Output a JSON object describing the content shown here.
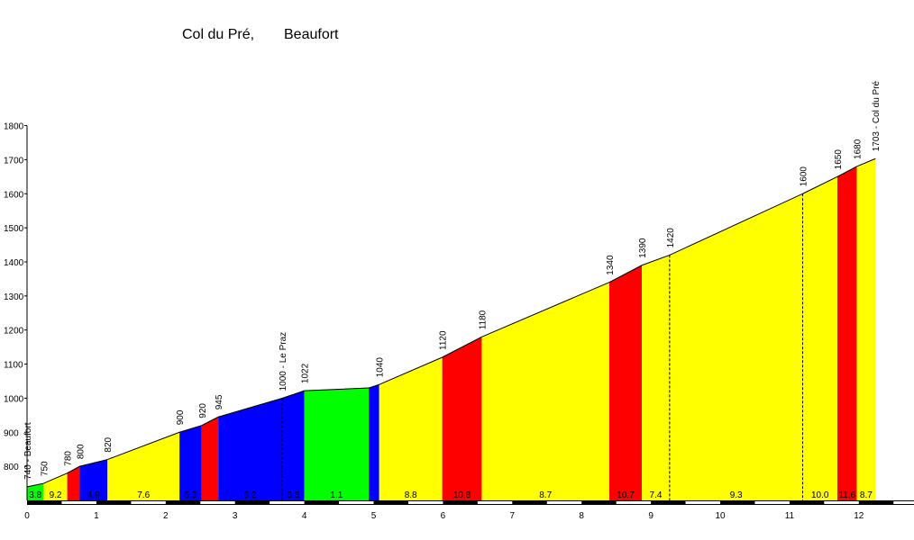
{
  "title": {
    "climb": "Col du Pré,",
    "start": "Beaufort"
  },
  "chart_data": {
    "type": "area",
    "title": "Col du Pré, Beaufort",
    "xlabel": "",
    "ylabel": "",
    "xlim": [
      0,
      12.5
    ],
    "ylim": [
      700,
      1800
    ],
    "x_ticks": [
      0,
      1,
      2,
      3,
      4,
      5,
      6,
      7,
      8,
      9,
      10,
      11,
      12
    ],
    "y_ticks": [
      800,
      900,
      1000,
      1100,
      1200,
      1300,
      1400,
      1500,
      1600,
      1700,
      1800
    ],
    "gradient_colors": {
      "green": "#00ff00",
      "yellow": "#ffff00",
      "red": "#ff0000",
      "blue": "#0000ff"
    },
    "points": [
      {
        "x": 0.0,
        "y": 740,
        "label": "740 - Beaufort"
      },
      {
        "x": 0.24,
        "y": 750,
        "label": "750"
      },
      {
        "x": 0.58,
        "y": 780,
        "label": "780"
      },
      {
        "x": 0.76,
        "y": 800,
        "label": "800"
      },
      {
        "x": 1.16,
        "y": 820,
        "label": "820"
      },
      {
        "x": 2.2,
        "y": 900,
        "label": "900"
      },
      {
        "x": 2.52,
        "y": 920,
        "label": "920"
      },
      {
        "x": 2.76,
        "y": 945,
        "label": "945"
      },
      {
        "x": 3.68,
        "y": 1000,
        "label": "1000 - Le Praz"
      },
      {
        "x": 4.0,
        "y": 1022,
        "label": "1022"
      },
      {
        "x": 4.93,
        "y": 1030,
        "label": ""
      },
      {
        "x": 5.08,
        "y": 1040,
        "label": "1040"
      },
      {
        "x": 5.99,
        "y": 1120,
        "label": "1120"
      },
      {
        "x": 6.56,
        "y": 1180,
        "label": "1180"
      },
      {
        "x": 8.4,
        "y": 1340,
        "label": "1340"
      },
      {
        "x": 8.87,
        "y": 1390,
        "label": "1390"
      },
      {
        "x": 9.27,
        "y": 1420,
        "label": "1420"
      },
      {
        "x": 11.19,
        "y": 1600,
        "label": "1600"
      },
      {
        "x": 11.69,
        "y": 1650,
        "label": "1650"
      },
      {
        "x": 11.97,
        "y": 1680,
        "label": "1680"
      },
      {
        "x": 12.24,
        "y": 1703,
        "label": "1703 - Col du Pré"
      }
    ],
    "segments": [
      {
        "from": 0.0,
        "to": 0.24,
        "grade": "3.8",
        "color": "green"
      },
      {
        "from": 0.24,
        "to": 0.58,
        "grade": "9.2",
        "color": "yellow"
      },
      {
        "from": 0.58,
        "to": 0.76,
        "grade": "",
        "color": "red"
      },
      {
        "from": 0.76,
        "to": 1.16,
        "grade": "4.9",
        "color": "blue"
      },
      {
        "from": 1.16,
        "to": 2.2,
        "grade": "7.6",
        "color": "yellow"
      },
      {
        "from": 2.2,
        "to": 2.52,
        "grade": "6.3",
        "color": "blue"
      },
      {
        "from": 2.52,
        "to": 2.76,
        "grade": "",
        "color": "red"
      },
      {
        "from": 2.76,
        "to": 3.68,
        "grade": "6.2",
        "color": "blue"
      },
      {
        "from": 3.68,
        "to": 4.0,
        "grade": "6.8",
        "color": "blue"
      },
      {
        "from": 4.0,
        "to": 4.93,
        "grade": "1.1",
        "color": "green"
      },
      {
        "from": 4.93,
        "to": 5.08,
        "grade": "",
        "color": "blue"
      },
      {
        "from": 5.08,
        "to": 5.99,
        "grade": "8.8",
        "color": "yellow"
      },
      {
        "from": 5.99,
        "to": 6.56,
        "grade": "10.8",
        "color": "red"
      },
      {
        "from": 6.56,
        "to": 8.4,
        "grade": "8.7",
        "color": "yellow"
      },
      {
        "from": 8.4,
        "to": 8.87,
        "grade": "10.7",
        "color": "red"
      },
      {
        "from": 8.87,
        "to": 9.27,
        "grade": "7.4",
        "color": "yellow"
      },
      {
        "from": 9.27,
        "to": 11.19,
        "grade": "9.3",
        "color": "yellow"
      },
      {
        "from": 11.19,
        "to": 11.69,
        "grade": "10.0",
        "color": "yellow"
      },
      {
        "from": 11.69,
        "to": 11.97,
        "grade": "11.6",
        "color": "red"
      },
      {
        "from": 11.97,
        "to": 12.24,
        "grade": "8.7",
        "color": "yellow"
      }
    ],
    "dashed_at": [
      3.68,
      9.27,
      11.19
    ]
  }
}
